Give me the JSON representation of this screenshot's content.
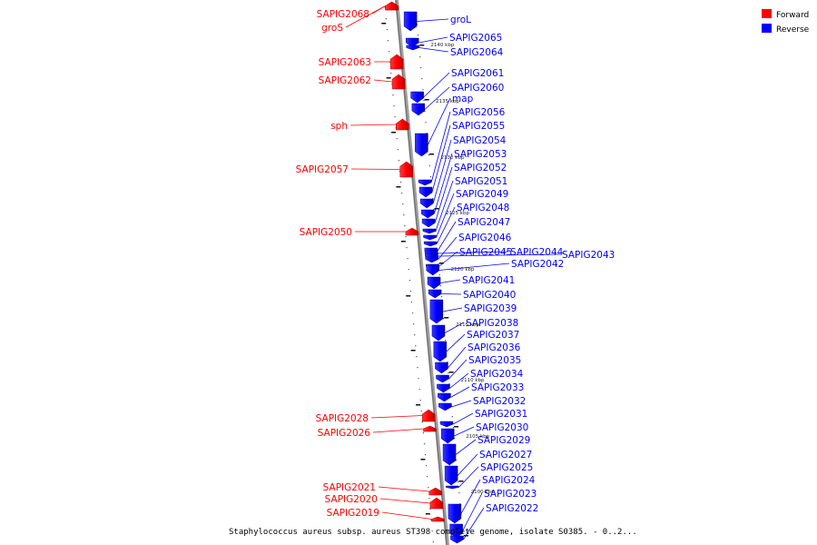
{
  "caption": "Staphylococcus aureus subsp. aureus ST398 complete genome, isolate S0385. - 0..2...",
  "legend": [
    {
      "label": "Forward",
      "color": "#ff0000"
    },
    {
      "label": "Reverse",
      "color": "#0000ff"
    }
  ],
  "colors": {
    "forward": "#ff0000",
    "reverse": "#0000ff",
    "backbone": "#8a8a8a"
  },
  "kbp_marks": [
    "2140 kbp",
    "2135 kbp",
    "2130 kbp",
    "2125 kbp",
    "2120 kbp",
    "2115 kbp",
    "2110 kbp",
    "2105 kbp",
    "2100 kbp"
  ],
  "forward_genes": [
    "SAPIG2068",
    "groS",
    "SAPIG2063",
    "SAPIG2062",
    "sph",
    "SAPIG2057",
    "SAPIG2050",
    "SAPIG2028",
    "SAPIG2026",
    "SAPIG2021",
    "SAPIG2020",
    "SAPIG2019"
  ],
  "reverse_genes": [
    "groL",
    "SAPIG2065",
    "SAPIG2064",
    "SAPIG2061",
    "SAPIG2060",
    "map",
    "SAPIG2056",
    "SAPIG2055",
    "SAPIG2054",
    "SAPIG2053",
    "SAPIG2052",
    "SAPIG2051",
    "SAPIG2049",
    "SAPIG2048",
    "SAPIG2047",
    "SAPIG2046",
    "SAPIG2045",
    "SAPIG2044",
    "SAPIG2043",
    "SAPIG2042",
    "SAPIG2041",
    "SAPIG2040",
    "SAPIG2039",
    "SAPIG2038",
    "SAPIG2037",
    "SAPIG2036",
    "SAPIG2035",
    "SAPIG2034",
    "SAPIG2033",
    "SAPIG2032",
    "SAPIG2031",
    "SAPIG2030",
    "SAPIG2029",
    "SAPIG2027",
    "SAPIG2025",
    "SAPIG2024",
    "SAPIG2023",
    "SAPIG2022"
  ]
}
